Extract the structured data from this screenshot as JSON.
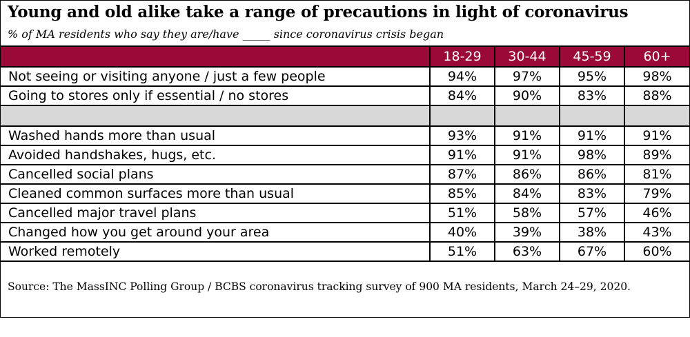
{
  "chart_data": {
    "type": "table",
    "title": "Young and old alike take a range of precautions in light of coronavirus",
    "subtitle": "% of MA residents who say they are/have _____ since coronavirus crisis began",
    "columns": [
      "18-29",
      "30-44",
      "45-59",
      "60+"
    ],
    "rows": [
      {
        "label": "Not seeing or visiting anyone / just a few people",
        "values": [
          "94%",
          "97%",
          "95%",
          "98%"
        ]
      },
      {
        "label": "Going to stores only if essential / no stores",
        "values": [
          "84%",
          "90%",
          "83%",
          "88%"
        ]
      },
      {
        "label": "",
        "values": [
          "",
          "",
          "",
          ""
        ]
      },
      {
        "label": "Washed hands more than usual",
        "values": [
          "93%",
          "91%",
          "91%",
          "91%"
        ]
      },
      {
        "label": "Avoided handshakes, hugs, etc.",
        "values": [
          "91%",
          "91%",
          "98%",
          "89%"
        ]
      },
      {
        "label": "Cancelled social plans",
        "values": [
          "87%",
          "86%",
          "86%",
          "81%"
        ]
      },
      {
        "label": "Cleaned common surfaces more than usual",
        "values": [
          "85%",
          "84%",
          "83%",
          "79%"
        ]
      },
      {
        "label": "Cancelled major travel plans",
        "values": [
          "51%",
          "58%",
          "57%",
          "46%"
        ]
      },
      {
        "label": "Changed how you get around your area",
        "values": [
          "40%",
          "39%",
          "38%",
          "43%"
        ]
      },
      {
        "label": "Worked remotely",
        "values": [
          "51%",
          "63%",
          "67%",
          "60%"
        ]
      }
    ],
    "source": "Source: The MassINC Polling Group / BCBS coronavirus tracking survey of 900 MA residents, March 24–29, 2020."
  },
  "colors": {
    "header_background": "#9b0a36",
    "header_text": "#ffffff",
    "spacer_background": "#d8d8d8"
  }
}
